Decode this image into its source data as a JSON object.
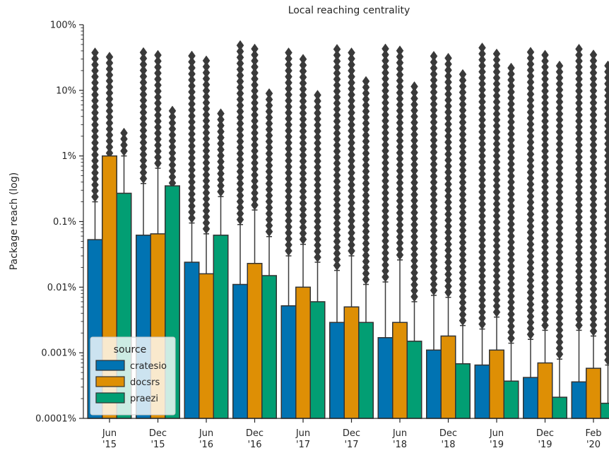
{
  "chart_data": {
    "type": "bar",
    "title": "Local reaching centrality",
    "ylabel": "Package reach (log)",
    "xlabel": "",
    "yscale": "log",
    "ylim": [
      0.0001,
      100
    ],
    "y_ticks": [
      {
        "value": 0.0001,
        "label": "0.0001%"
      },
      {
        "value": 0.001,
        "label": "0.001%"
      },
      {
        "value": 0.01,
        "label": "0.01%"
      },
      {
        "value": 0.1,
        "label": "0.1%"
      },
      {
        "value": 1,
        "label": "1%"
      },
      {
        "value": 10,
        "label": "10%"
      },
      {
        "value": 100,
        "label": "100%"
      }
    ],
    "categories": [
      [
        "Jun",
        "'15"
      ],
      [
        "Dec",
        "'15"
      ],
      [
        "Jun",
        "'16"
      ],
      [
        "Dec",
        "'16"
      ],
      [
        "Jun",
        "'17"
      ],
      [
        "Dec",
        "'17"
      ],
      [
        "Jun",
        "'18"
      ],
      [
        "Dec",
        "'18"
      ],
      [
        "Jun",
        "'19"
      ],
      [
        "Dec",
        "'19"
      ],
      [
        "Feb",
        "'20"
      ]
    ],
    "legend": {
      "title": "source",
      "placement": "lower-left"
    },
    "grid": false,
    "series": [
      {
        "name": "cratesio",
        "color": "#0173b2",
        "values": [
          0.053,
          0.062,
          0.024,
          0.011,
          0.0052,
          0.0029,
          0.0017,
          0.0011,
          0.00065,
          0.00042,
          0.00036
        ],
        "whisker_high": [
          0.2,
          0.38,
          0.095,
          0.09,
          0.03,
          0.018,
          0.012,
          0.0075,
          0.0023,
          0.0016,
          0.0022
        ],
        "outlier_max": [
          40,
          45,
          40,
          50,
          45,
          45,
          45,
          40,
          45,
          40,
          45
        ]
      },
      {
        "name": "docsrs",
        "color": "#de8f05",
        "values": [
          1.0,
          0.065,
          0.016,
          0.023,
          0.01,
          0.005,
          0.0029,
          0.0018,
          0.0011,
          0.0007,
          0.00058
        ],
        "whisker_high": [
          0.4,
          0.65,
          0.065,
          0.15,
          0.045,
          0.03,
          0.026,
          0.007,
          0.0035,
          0.0022,
          0.0018
        ],
        "outlier_max": [
          35,
          35,
          30,
          45,
          35,
          40,
          45,
          35,
          40,
          35,
          35
        ]
      },
      {
        "name": "praezi",
        "color": "#029e73",
        "values": [
          0.27,
          0.35,
          0.062,
          0.015,
          0.006,
          0.0029,
          0.0015,
          0.00068,
          0.00037,
          0.00021,
          0.00017
        ],
        "whisker_high": [
          1.0,
          0.14,
          0.24,
          0.059,
          0.024,
          0.011,
          0.006,
          0.0026,
          0.0014,
          0.0008,
          0.00065
        ],
        "outlier_max": [
          2.5,
          5,
          5,
          9,
          9,
          14,
          14,
          20,
          24,
          24,
          24
        ]
      }
    ]
  }
}
